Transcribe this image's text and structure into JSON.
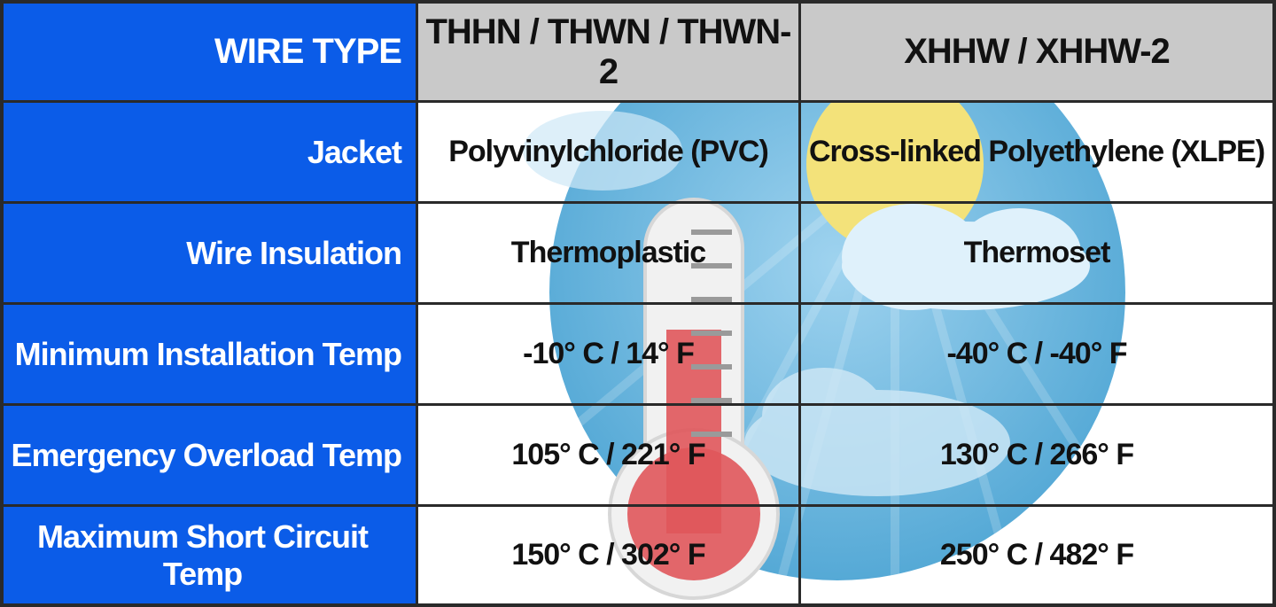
{
  "table": {
    "header": {
      "label": "WIRE TYPE",
      "col1": "THHN / THWN / THWN-2",
      "col2": "XHHW / XHHW-2"
    },
    "rows": [
      {
        "label": "Jacket",
        "col1": "Polyvinylchloride (PVC)",
        "col2": "Cross-linked Polyethylene (XLPE)"
      },
      {
        "label": "Wire Insulation",
        "col1": "Thermoplastic",
        "col2": "Thermoset"
      },
      {
        "label": "Minimum Installation Temp",
        "col1": "-10° C / 14° F",
        "col2": "-40° C / -40° F"
      },
      {
        "label": "Emergency Overload Temp",
        "col1": "105° C / 221° F",
        "col2": "130° C / 266° F"
      },
      {
        "label": "Maximum Short Circuit Temp",
        "col1": "150° C / 302° F",
        "col2": "250° C / 482° F"
      }
    ]
  },
  "colors": {
    "label_bg": "#0b5ce8",
    "header_bg": "#c9c9c9",
    "grid_line": "#2a2a2a",
    "sky_circle": "#5aaed8",
    "sun": "#f3e27a",
    "thermometer_fill": "#e0575b"
  },
  "icons": [
    "weather-circle-illustration",
    "sun-icon",
    "cloud-icon",
    "thermometer-icon"
  ]
}
